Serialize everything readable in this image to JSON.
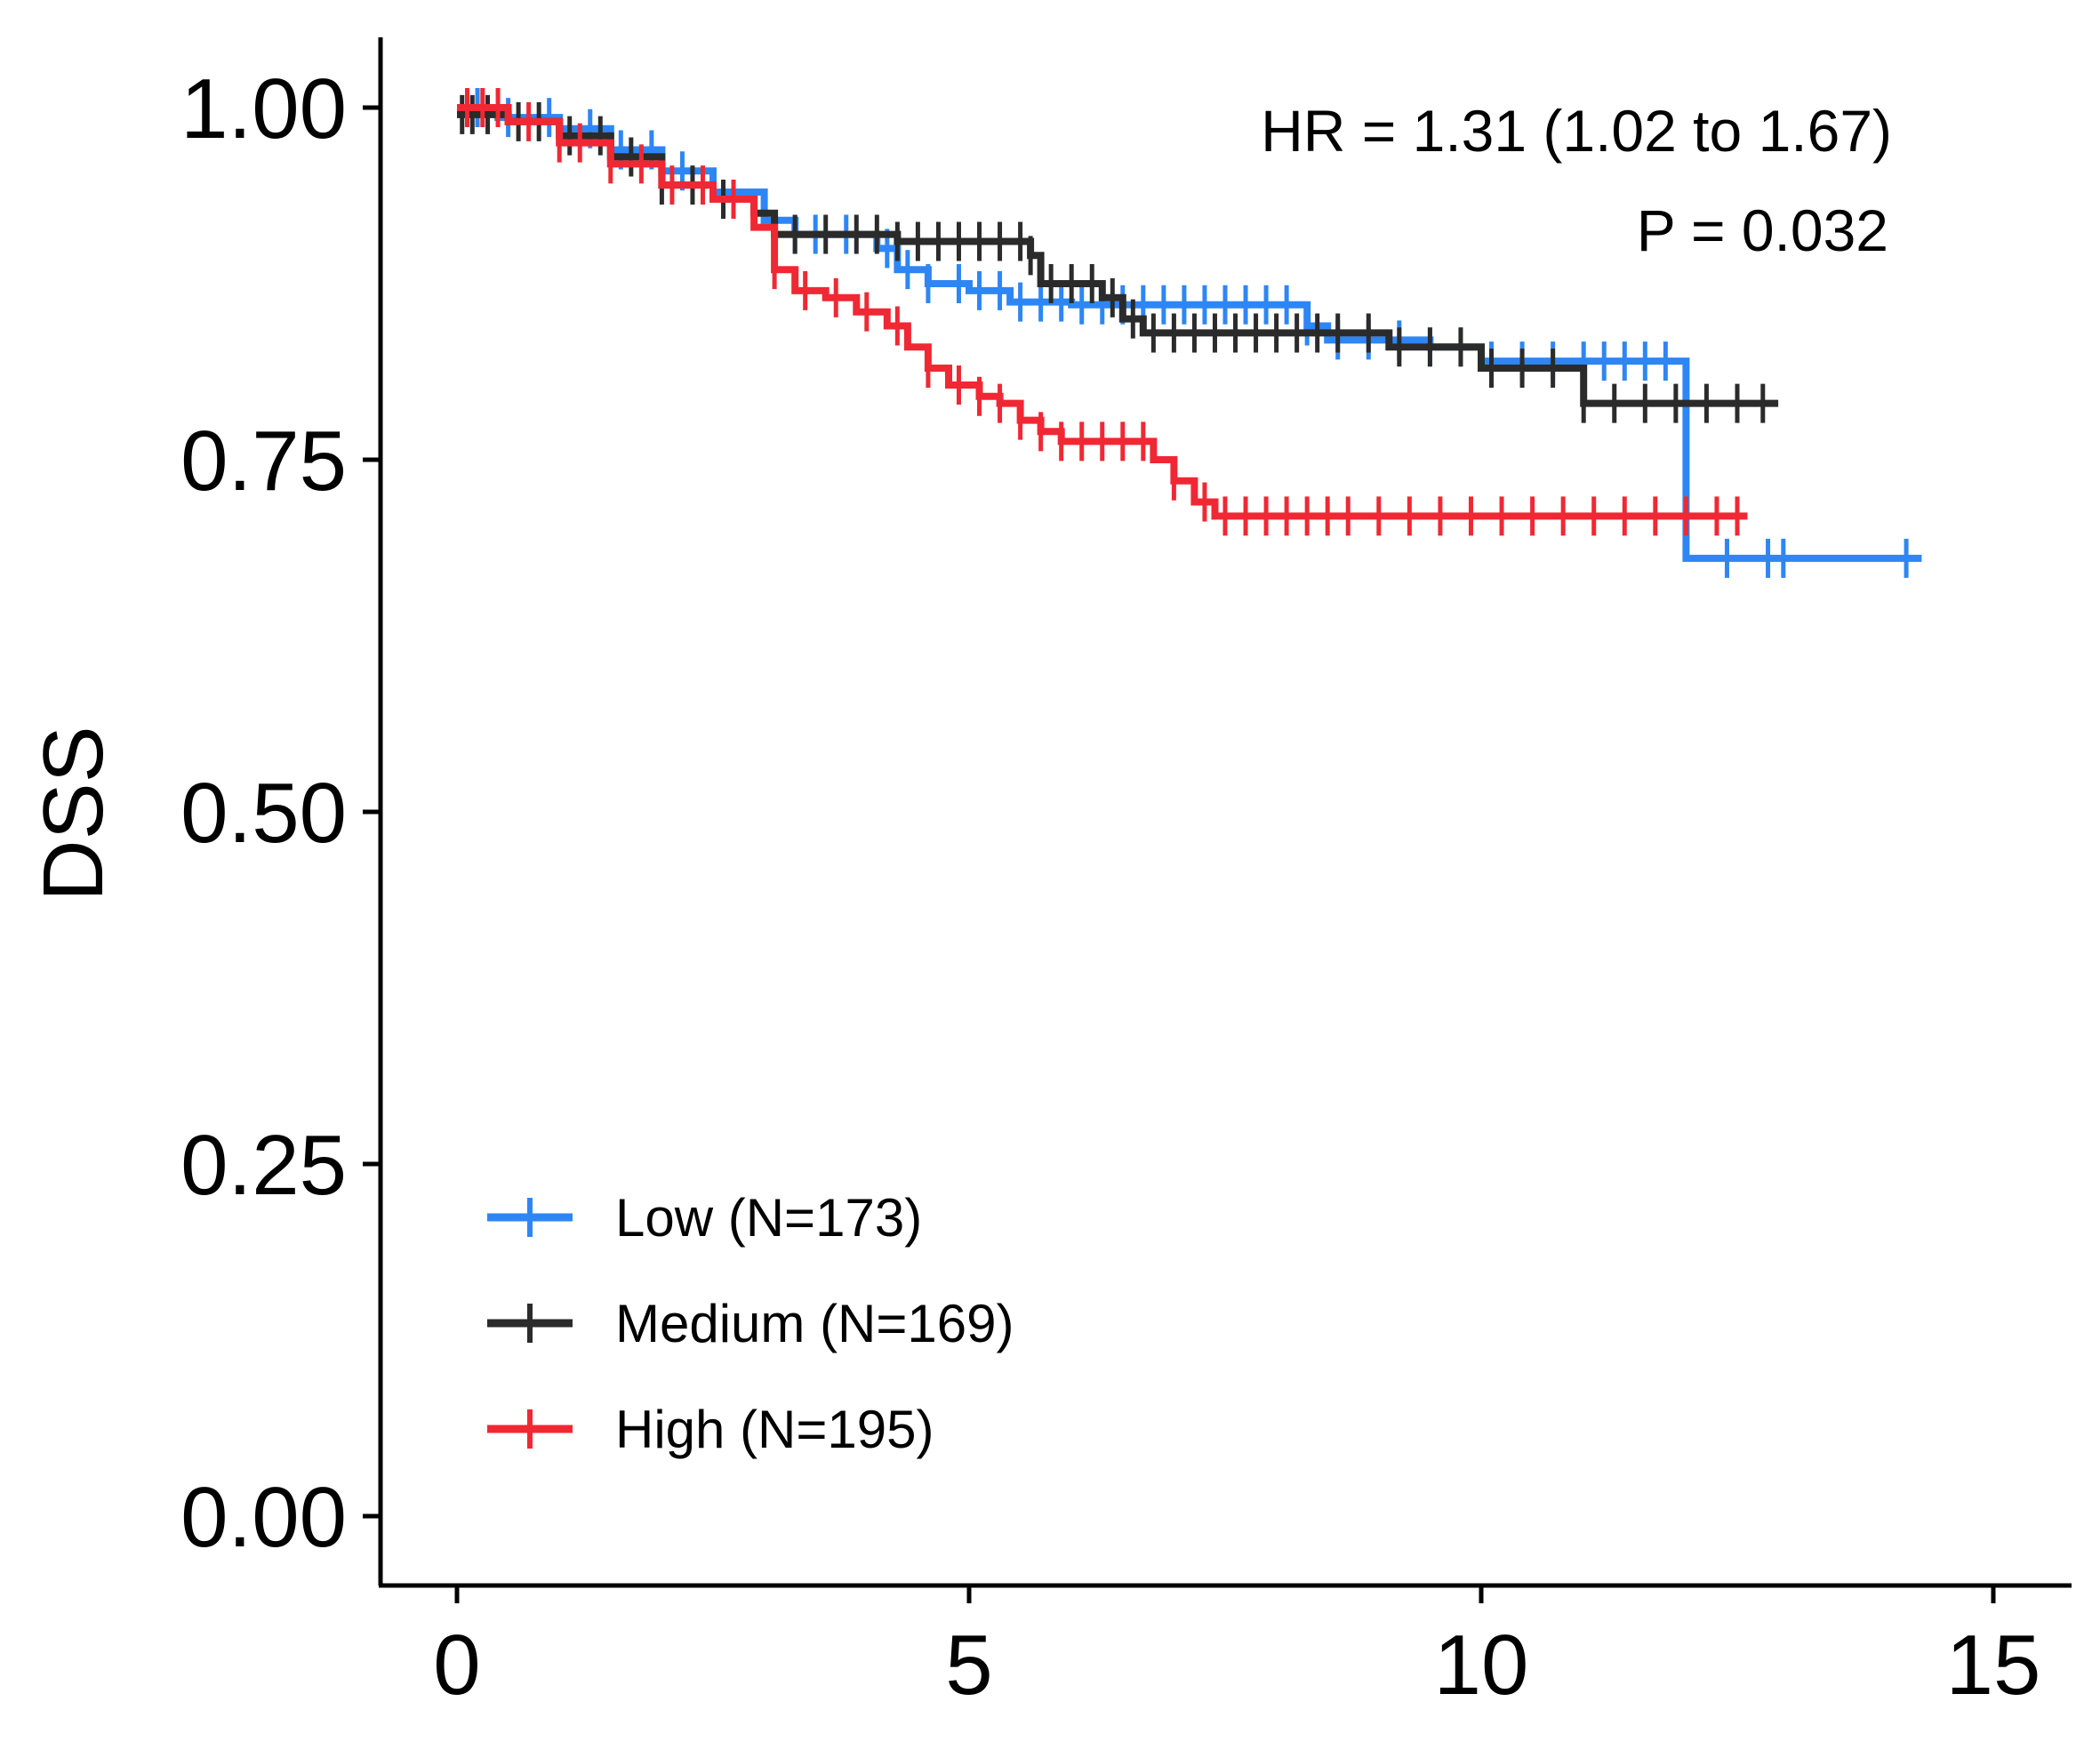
{
  "chart_data": {
    "type": "line",
    "subtype": "kaplan-meier",
    "ylabel": "DSS",
    "xlim": [
      -0.75,
      15.75
    ],
    "ylim": [
      -0.05,
      1.05
    ],
    "xticks": [
      0,
      5,
      10,
      15
    ],
    "xtick_labels": [
      "0",
      "5",
      "10",
      "15"
    ],
    "yticks": [
      0,
      0.25,
      0.5,
      0.75,
      1.0
    ],
    "ytick_labels": [
      "0.00",
      "0.25",
      "0.50",
      "0.75",
      "1.00"
    ],
    "grid": false,
    "legend_position": "bottom-left",
    "annotations": [
      "HR = 1.31 (1.02 to 1.67)",
      "P = 0.032"
    ],
    "series": [
      {
        "name": "Low (N=173)",
        "color": "#2e86f5",
        "points": [
          [
            0,
            1.0
          ],
          [
            0.4,
            0.993
          ],
          [
            1.0,
            0.985
          ],
          [
            1.5,
            0.97
          ],
          [
            2.0,
            0.955
          ],
          [
            2.5,
            0.94
          ],
          [
            3.0,
            0.92
          ],
          [
            3.3,
            0.91
          ],
          [
            4.1,
            0.9
          ],
          [
            4.3,
            0.885
          ],
          [
            4.6,
            0.875
          ],
          [
            5.0,
            0.87
          ],
          [
            5.4,
            0.862
          ],
          [
            6.0,
            0.86
          ],
          [
            8.3,
            0.845
          ],
          [
            8.5,
            0.835
          ],
          [
            9.5,
            0.83
          ],
          [
            10.0,
            0.82
          ],
          [
            12.0,
            0.82
          ],
          [
            12.0,
            0.68
          ],
          [
            14.3,
            0.68
          ]
        ],
        "censor_x": [
          0.1,
          0.2,
          0.5,
          0.9,
          1.3,
          1.6,
          1.9,
          2.2,
          3.3,
          3.5,
          3.8,
          4.2,
          4.4,
          4.6,
          4.9,
          5.1,
          5.3,
          5.5,
          5.7,
          5.9,
          6.1,
          6.3,
          6.5,
          6.7,
          6.9,
          7.1,
          7.3,
          7.5,
          7.7,
          7.9,
          8.1,
          8.3,
          8.6,
          8.9,
          9.2,
          9.5,
          9.8,
          10.1,
          10.4,
          10.7,
          11.0,
          11.2,
          11.4,
          11.6,
          11.8,
          12.4,
          12.8,
          12.95,
          14.15
        ]
      },
      {
        "name": "Medium (N=169)",
        "color": "#2b2b2b",
        "points": [
          [
            0,
            0.995
          ],
          [
            0.5,
            0.99
          ],
          [
            1.0,
            0.98
          ],
          [
            1.5,
            0.965
          ],
          [
            2.0,
            0.945
          ],
          [
            2.5,
            0.935
          ],
          [
            2.9,
            0.925
          ],
          [
            3.1,
            0.91
          ],
          [
            4.3,
            0.905
          ],
          [
            5.6,
            0.895
          ],
          [
            5.7,
            0.875
          ],
          [
            6.3,
            0.865
          ],
          [
            6.5,
            0.85
          ],
          [
            6.7,
            0.84
          ],
          [
            9.0,
            0.84
          ],
          [
            9.1,
            0.83
          ],
          [
            10.0,
            0.815
          ],
          [
            11.0,
            0.8
          ],
          [
            11.0,
            0.79
          ],
          [
            12.9,
            0.79
          ]
        ],
        "censor_x": [
          0.05,
          0.15,
          0.3,
          0.6,
          0.8,
          1.1,
          1.4,
          1.7,
          2.0,
          2.3,
          2.6,
          3.3,
          3.6,
          3.9,
          4.1,
          4.3,
          4.5,
          4.7,
          4.9,
          5.1,
          5.3,
          5.5,
          5.6,
          5.8,
          6.0,
          6.2,
          6.4,
          6.6,
          6.8,
          7.0,
          7.2,
          7.4,
          7.6,
          7.8,
          8.0,
          8.2,
          8.4,
          8.6,
          8.9,
          9.2,
          9.5,
          9.8,
          10.1,
          10.4,
          10.7,
          11.0,
          11.3,
          11.6,
          11.9,
          12.2,
          12.5,
          12.75
        ]
      },
      {
        "name": "High (N=195)",
        "color": "#f02834",
        "points": [
          [
            0,
            1.0
          ],
          [
            0.5,
            0.99
          ],
          [
            1.0,
            0.975
          ],
          [
            1.5,
            0.96
          ],
          [
            2.0,
            0.945
          ],
          [
            2.5,
            0.935
          ],
          [
            2.9,
            0.915
          ],
          [
            3.1,
            0.885
          ],
          [
            3.3,
            0.87
          ],
          [
            3.6,
            0.865
          ],
          [
            3.9,
            0.855
          ],
          [
            4.2,
            0.845
          ],
          [
            4.4,
            0.83
          ],
          [
            4.6,
            0.815
          ],
          [
            4.8,
            0.803
          ],
          [
            5.1,
            0.795
          ],
          [
            5.3,
            0.79
          ],
          [
            5.5,
            0.778
          ],
          [
            5.7,
            0.77
          ],
          [
            5.9,
            0.763
          ],
          [
            6.7,
            0.763
          ],
          [
            6.8,
            0.75
          ],
          [
            7.0,
            0.735
          ],
          [
            7.2,
            0.72
          ],
          [
            7.4,
            0.71
          ],
          [
            12.6,
            0.71
          ]
        ],
        "censor_x": [
          0.1,
          0.25,
          0.4,
          0.7,
          1.0,
          1.2,
          1.5,
          1.8,
          2.1,
          2.4,
          2.7,
          3.1,
          3.4,
          3.7,
          4.0,
          4.3,
          4.6,
          4.9,
          5.1,
          5.3,
          5.5,
          5.7,
          5.9,
          6.1,
          6.3,
          6.5,
          6.7,
          7.0,
          7.3,
          7.5,
          7.7,
          7.9,
          8.1,
          8.3,
          8.5,
          8.7,
          9.0,
          9.3,
          9.6,
          9.9,
          10.2,
          10.5,
          10.8,
          11.1,
          11.4,
          11.7,
          12.0,
          12.3,
          12.5
        ]
      }
    ]
  }
}
